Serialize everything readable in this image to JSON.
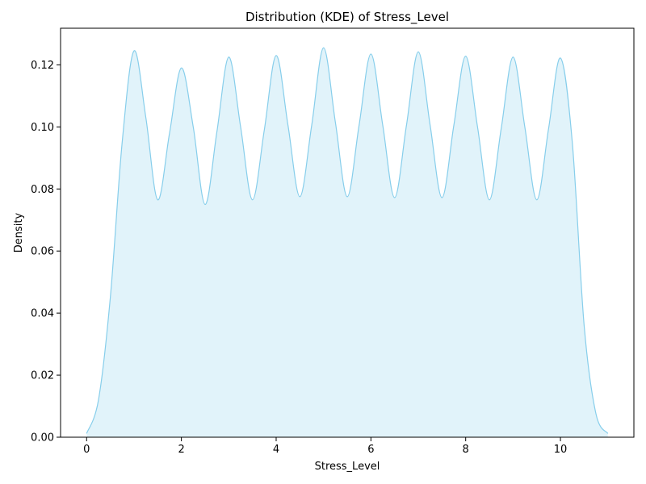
{
  "chart_data": {
    "type": "area",
    "title": "Distribution (KDE) of Stress_Level",
    "xlabel": "Stress_Level",
    "ylabel": "Density",
    "xlim": [
      -0.55,
      11.55
    ],
    "ylim": [
      0,
      0.1318
    ],
    "xticks": [
      0,
      2,
      4,
      6,
      8,
      10
    ],
    "xtick_labels": [
      "0",
      "2",
      "4",
      "6",
      "8",
      "10"
    ],
    "yticks": [
      0,
      0.02,
      0.04,
      0.06,
      0.08,
      0.1,
      0.12
    ],
    "ytick_labels": [
      "0.00",
      "0.02",
      "0.04",
      "0.06",
      "0.08",
      "0.10",
      "0.12"
    ],
    "grid": false,
    "legend": "none",
    "colors": {
      "line": "#87CEEB",
      "fill": "#87CEEB",
      "fill_opacity": 0.25
    },
    "series": [
      {
        "x": [
          0.0,
          0.25,
          0.5,
          0.75,
          1.0,
          1.25,
          1.5,
          1.75,
          2.0,
          2.25,
          2.5,
          2.75,
          3.0,
          3.25,
          3.5,
          3.75,
          4.0,
          4.25,
          4.5,
          4.75,
          5.0,
          5.25,
          5.5,
          5.75,
          6.0,
          6.25,
          6.5,
          6.75,
          7.0,
          7.25,
          7.5,
          7.75,
          8.0,
          8.25,
          8.5,
          8.75,
          9.0,
          9.25,
          9.5,
          9.75,
          10.0,
          10.25,
          10.5,
          10.75,
          11.0
        ],
        "y": [
          0.0012,
          0.012,
          0.045,
          0.095,
          0.1245,
          0.103,
          0.0765,
          0.098,
          0.119,
          0.1,
          0.075,
          0.0985,
          0.1225,
          0.1,
          0.0765,
          0.099,
          0.123,
          0.1005,
          0.0775,
          0.1005,
          0.1255,
          0.1015,
          0.0775,
          0.1005,
          0.1235,
          0.1005,
          0.0772,
          0.1005,
          0.1242,
          0.1005,
          0.0772,
          0.1005,
          0.1228,
          0.1,
          0.0765,
          0.0995,
          0.1225,
          0.0998,
          0.0765,
          0.0995,
          0.1222,
          0.095,
          0.036,
          0.0075,
          0.0012
        ]
      }
    ]
  }
}
